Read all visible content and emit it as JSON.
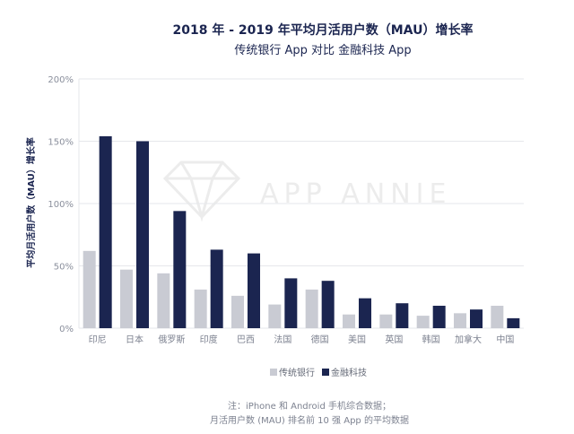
{
  "chart_data": {
    "type": "bar",
    "title": "2018 年 - 2019 年平均月活用户数（MAU）增长率",
    "subtitle": "传统银行 App 对比 金融科技 App",
    "ylabel": "平均月活用户数（MAU）增长率",
    "xlabel": "",
    "ylim": [
      0,
      200
    ],
    "yticks": [
      0,
      50,
      100,
      150,
      200
    ],
    "ytick_labels": [
      "0%",
      "50%",
      "100%",
      "150%",
      "200%"
    ],
    "categories": [
      "印尼",
      "日本",
      "俄罗斯",
      "印度",
      "巴西",
      "法国",
      "德国",
      "美国",
      "英国",
      "韩国",
      "加拿大",
      "中国"
    ],
    "series": [
      {
        "name": "传统银行",
        "color": "#c9cbd3",
        "values": [
          62,
          47,
          44,
          31,
          26,
          19,
          31,
          11,
          11,
          10,
          12,
          18
        ]
      },
      {
        "name": "金融科技",
        "color": "#1b2550",
        "values": [
          154,
          150,
          94,
          63,
          60,
          40,
          38,
          24,
          20,
          18,
          15,
          8
        ]
      }
    ],
    "legend_position": "bottom",
    "watermark": "APP ANNIE",
    "note": [
      "注：iPhone 和 Android 手机综合数据；",
      "月活用户数 (MAU) 排名前 10 强 App 的平均数据"
    ]
  }
}
